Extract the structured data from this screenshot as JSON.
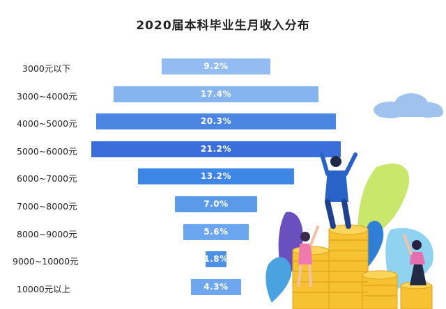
{
  "chart_data": {
    "type": "bar",
    "orientation": "horizontal-funnel",
    "title": "2020届本科毕业生月收入分布",
    "categories": [
      "3000元以下",
      "3000~4000元",
      "4000~5000元",
      "5000~6000元",
      "6000~7000元",
      "7000~8000元",
      "8000~9000元",
      "9000~10000元",
      "10000元以上"
    ],
    "values": [
      9.2,
      17.4,
      20.3,
      21.2,
      13.2,
      7.0,
      5.6,
      1.8,
      4.3
    ],
    "value_labels": [
      "9.2%",
      "17.4%",
      "20.3%",
      "21.2%",
      "13.2%",
      "7.0%",
      "5.6%",
      "1.8%",
      "4.3%"
    ],
    "xlim": [
      0,
      22.5
    ],
    "colors": [
      "#93bdf2",
      "#86b4ee",
      "#4a86e2",
      "#3a6fdb",
      "#3d86e6",
      "#5a9ae8",
      "#6ba6ee",
      "#4e90e4",
      "#6ea7ee"
    ]
  }
}
